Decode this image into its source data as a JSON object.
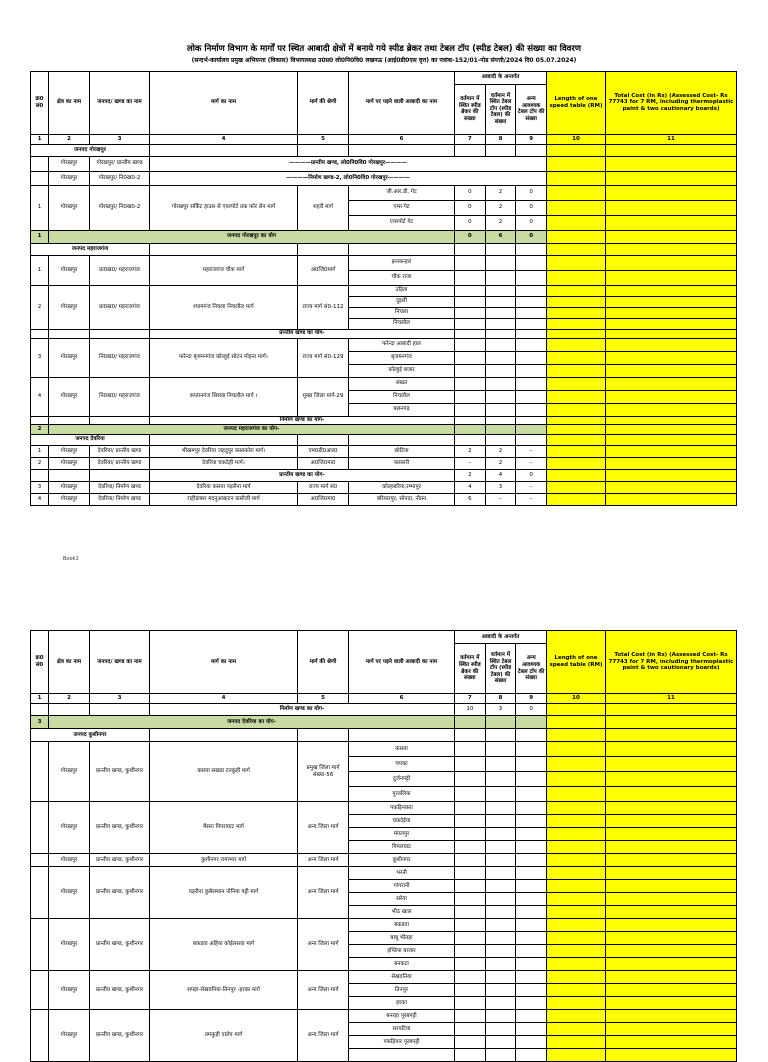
{
  "colors": {
    "yellow": "#ffff00",
    "green": "#c9dba3",
    "border": "#000000"
  },
  "title": {
    "line1": "लोक निर्माण विभाग के मार्गों पर स्थित आबादी क्षेत्रों में बनाये गये स्पीड ब्रेकर तथा टेबल टॉप (स्पीड टेबल) की संख्या का विवरण",
    "line2": "(सन्दर्भ-कार्यालय प्रमुख अभियन्ता (विकास) विभागाध्यक्ष उ0प्र0 लो0नि0वि0 लखनऊ (आई0डी0एस वृत्त) का पत्रांक-152/01-नोड संपत्ती/2024 दि0 05.07.2024)",
    "footer": "Book1"
  },
  "header": {
    "c1": "क्र0 सं0",
    "c2": "क्षेत्र का नाम",
    "c3": "जनपद/ खण्ड का नाम",
    "c4": "मार्ग का नाम",
    "c5": "मार्ग की श्रेणी",
    "c6": "मार्ग पर पड़ने वाली आबादी का नाम",
    "group": "आबादी के अन्तर्गत",
    "c7": "वर्तमान में स्थित स्पीड ब्रेकर की संख्या",
    "c8": "वर्तमान में स्थित टेबल टॉप (स्पीड टेबल) की संख्या",
    "c9": "अन्य आवश्यक टेबल टॉप की संख्या",
    "c10": "Length of one speed table (RM)",
    "c11": "Total Cost (in Rs) (Assessed Cost- Rs 77743 for 7 RM, including thermoplastic paint & two cautionary boards)",
    "numbers": [
      "1",
      "2",
      "3",
      "4",
      "5",
      "6",
      "7",
      "8",
      "9",
      "10",
      "11"
    ]
  },
  "pages": [
    {
      "rows": [
        {
          "type": "section",
          "label": "जनपद गोरखपुर",
          "h": 12
        },
        {
          "type": "banner",
          "area": "गोरखपुर",
          "division": "गोरखपुर/ प्रान्तीय खण्ड",
          "label": "————प्रान्तीय खण्ड, लो0नि0वि0 गोरखपुर————",
          "h": 15
        },
        {
          "type": "banner",
          "area": "गोरखपुर",
          "division": "गोरखपुर/ नि0ख0-2",
          "label": "————निर्माण खण्ड-2, लो0नि0वि0 गोरखपुर————",
          "h": 14
        },
        {
          "type": "road",
          "sn": "1",
          "area": "गोरखपुर",
          "division": "गोरखपुर/ नि0ख0-2",
          "road": "गोरखपुर सर्किट हाउस से एयरपोर्ट तक फोर लेन मार्ग",
          "category": "शहरी मार्ग",
          "h": 15,
          "villages": [
            [
              "जी.आर.डी. गेट",
              "0",
              "2",
              "0"
            ],
            [
              "एम्स गेट",
              "0",
              "2",
              "0"
            ],
            [
              "एयरपोर्ट गेट",
              "0",
              "2",
              "0"
            ]
          ]
        },
        {
          "type": "grand",
          "sn": "1",
          "label": "जनपद गोरखपुर का योग",
          "v": [
            "0",
            "6",
            "0"
          ],
          "h": 13
        },
        {
          "type": "section",
          "label": "जनपद महराजगंज",
          "h": 12
        },
        {
          "type": "road",
          "sn": "1",
          "area": "गोरखपुर",
          "division": "प्रा0ख0/ महराजगंज",
          "road": "महराजगंज चौक मार्ग",
          "category": "अ0जि0मार्ग",
          "h": 15,
          "villages": [
            [
              "झनकन्हरा",
              "",
              "",
              ""
            ],
            [
              "चौक राजा",
              "",
              "",
              ""
            ]
          ]
        },
        {
          "type": "road",
          "sn": "2",
          "area": "गोरखपुर",
          "division": "प्रा0ख0/ महराजगंज",
          "road": "श्यामगंज निचला निचलौल मार्ग",
          "category": "राज्य मार्ग सं0-112",
          "h": 11,
          "villages": [
            [
              "उड़िता",
              "",
              "",
              ""
            ],
            [
              "दुइली",
              "",
              "",
              ""
            ],
            [
              "निचला",
              "",
              "",
              ""
            ],
            [
              "निचलौल",
              "",
              "",
              ""
            ]
          ]
        },
        {
          "type": "subtotal",
          "label": "प्रान्तीय खण्ड का योग-",
          "v": [
            "",
            "",
            ""
          ],
          "h": 9
        },
        {
          "type": "road",
          "sn": "3",
          "area": "गोरखपुर",
          "division": "नि0ख0/ महराजगंज",
          "road": "फरेन्दा बृजमनगंज कोल्हुई सोटन मोहना मार्ग।",
          "category": "राज्य मार्ग सं0-129",
          "h": 13,
          "villages": [
            [
              "फरेन्दा आबादी हाल",
              "",
              "",
              ""
            ],
            [
              "बृजमनगंज",
              "",
              "",
              ""
            ],
            [
              "कोल्हुई बजार",
              "",
              "",
              ""
            ]
          ]
        },
        {
          "type": "road",
          "sn": "4",
          "area": "गोरखपुर",
          "division": "नि0ख0/ महराजगंज",
          "road": "कप्तानगंज सिसवा निचलौल मार्ग ।",
          "category": "मुख्य जिला मार्ग-29",
          "h": 13,
          "villages": [
            [
              "सखत",
              "",
              "",
              ""
            ],
            [
              "निचलौल",
              "",
              "",
              ""
            ],
            [
              "बलनगढ़",
              "",
              "",
              ""
            ]
          ]
        },
        {
          "type": "subtotal",
          "label": "निर्माण खण्ड का योग-",
          "v": [
            "",
            "",
            ""
          ],
          "h": 8
        },
        {
          "type": "grand",
          "sn": "2",
          "label": "जनपद महराजगंज का योग-",
          "v": [
            "",
            "",
            ""
          ],
          "h": 10
        },
        {
          "type": "section",
          "label": "जनपद देवरिया",
          "h": 11
        },
        {
          "type": "road",
          "sn": "1",
          "area": "गोरखपुर",
          "division": "देवरिया/ प्रान्तीय खण्ड",
          "road": "भीखमपुर देवरिया जहदुपुर कस्तकोरा मार्ग।",
          "category": "एम0डी0आर0",
          "h": 12,
          "villages": [
            [
              "छोटिया",
              "2",
              "2",
              "–"
            ]
          ]
        },
        {
          "type": "road",
          "sn": "2",
          "area": "गोरखपुर",
          "division": "देवरिया/ प्रान्तीय खण्ड",
          "road": "देवरिया चकदेही मार्ग।",
          "category": "अ0जि0मा0",
          "h": 12,
          "villages": [
            [
              "कसरारी",
              "–",
              "2",
              "–"
            ]
          ]
        },
        {
          "type": "subtotal",
          "label": "प्रान्तीय खण्ड का योग-",
          "v": [
            "2",
            "4",
            "0"
          ],
          "h": 12
        },
        {
          "type": "road",
          "sn": "3",
          "area": "गोरखपुर",
          "division": "देवरिया/ निर्माण खण्ड",
          "road": "देवरिया कसया पड़रौना मार्ग",
          "category": "राज्य मार्ग सं0",
          "h": 12,
          "villages": [
            [
              "कोल्हबरिया,रम्भापुर",
              "4",
              "3",
              "–"
            ]
          ]
        },
        {
          "type": "road",
          "sn": "4",
          "area": "गोरखपुर",
          "division": "देवरिया/ निर्माण खण्ड",
          "road": "राहीडाबार मदनुआबाटन कसौजी मार्ग",
          "category": "अ0जि0मा0",
          "h": 12,
          "villages": [
            [
              "बरियारपुर, सोनदा, नौतन",
              "6",
              "–",
              "–"
            ]
          ]
        }
      ]
    },
    {
      "rows": [
        {
          "type": "subtotal",
          "label": "निर्माण खण्ड का योग-",
          "v": [
            "10",
            "3",
            "0"
          ],
          "h": 12
        },
        {
          "type": "grand",
          "sn": "3",
          "label": "जनपद देवरिया का योग-",
          "v": [
            "",
            "",
            ""
          ],
          "h": 13
        },
        {
          "type": "section",
          "label": "जनपद कुशीनगर",
          "h": 13
        },
        {
          "type": "road",
          "sn": "",
          "area": "गोरखपुर",
          "division": "प्रान्तीय खण्ड, कुशीनगर",
          "road": "कसया सखडा टनकुही मार्ग",
          "category": "प्रमुख जिला मार्ग संख्या-56",
          "h": 15,
          "villages": [
            [
              "कसया",
              "",
              "",
              ""
            ],
            [
              "चपका",
              "",
              "",
              ""
            ],
            [
              "दुर्जनपट्टी",
              "",
              "",
              ""
            ],
            [
              "गुरवलिया",
              "",
              "",
              ""
            ]
          ]
        },
        {
          "type": "road",
          "sn": "",
          "area": "गोरखपुर",
          "division": "प्रान्तीय खण्ड, कुशीनगर",
          "road": "मैसरा पिपराघाट मार्ग",
          "category": "अन्य जिला मार्ग",
          "h": 13,
          "villages": [
            [
              "पकड़िनकरा",
              "",
              "",
              ""
            ],
            [
              "चकदेईया",
              "",
              "",
              ""
            ],
            [
              "मंगलपुर",
              "",
              "",
              ""
            ],
            [
              "पिपराघाट",
              "",
              "",
              ""
            ]
          ]
        },
        {
          "type": "road",
          "sn": "",
          "area": "गोरखपुर",
          "division": "प्रान्तीय खण्ड, कुशीनगर",
          "road": "कुशीनगर रामाभार मार्ग",
          "category": "अन्य जिला मार्ग",
          "h": 13,
          "villages": [
            [
              "कुशीनगर",
              "",
              "",
              ""
            ]
          ]
        },
        {
          "type": "road",
          "sn": "",
          "area": "गोरखपुर",
          "division": "प्रान्तीय खण्ड, कुशीनगर",
          "road": "पड़रौना कुबेरस्थान नोनिया पट्टी मार्ग",
          "category": "अन्य जिला मार्ग",
          "h": 13,
          "villages": [
            [
              "भरनी",
              "",
              "",
              ""
            ],
            [
              "गांगरानी",
              "",
              "",
              ""
            ],
            [
              "सरेया",
              "",
              "",
              ""
            ],
            [
              "भीठ खाल",
              "",
              "",
              ""
            ]
          ]
        },
        {
          "type": "road",
          "sn": "",
          "area": "गोरखपुर",
          "division": "प्रान्तीय खण्ड, कुशीनगर",
          "road": "बकडवा अहिया कोईलसवा मार्ग",
          "category": "अन्य जिला मार्ग",
          "h": 13,
          "villages": [
            [
              "बकडवा",
              "",
              "",
              ""
            ],
            [
              "बाबू भीतहा",
              "",
              "",
              ""
            ],
            [
              "इण्डिया बाजार",
              "",
              "",
              ""
            ],
            [
              "बनकटा",
              "",
              "",
              ""
            ]
          ]
        },
        {
          "type": "road",
          "sn": "",
          "area": "गोरखपुर",
          "division": "प्रान्तीय खण्ड, कुशीनगर",
          "road": "सपहा-सेखवनिया-तिनपुर -हरका मार्ग",
          "category": "अन्य जिला मार्ग",
          "h": 13,
          "villages": [
            [
              "सेखवनिया",
              "",
              "",
              ""
            ],
            [
              "तिनपुर",
              "",
              "",
              ""
            ],
            [
              "हरका",
              "",
              "",
              ""
            ]
          ]
        },
        {
          "type": "road",
          "sn": "",
          "area": "गोरखपुर",
          "division": "प्रान्तीय खण्ड, कुशीनगर",
          "road": "तमकुही एप्रोच मार्ग",
          "category": "अन्य जिला मार्ग",
          "h": 13,
          "villages": [
            [
              "बनरहा पूरबपट्टी",
              "",
              "",
              ""
            ],
            [
              "सरपटिया",
              "",
              "",
              ""
            ],
            [
              "पकड़ियार पूरबपट्टी",
              "",
              "",
              ""
            ],
            [
              "",
              "",
              "",
              ""
            ]
          ]
        }
      ]
    }
  ]
}
